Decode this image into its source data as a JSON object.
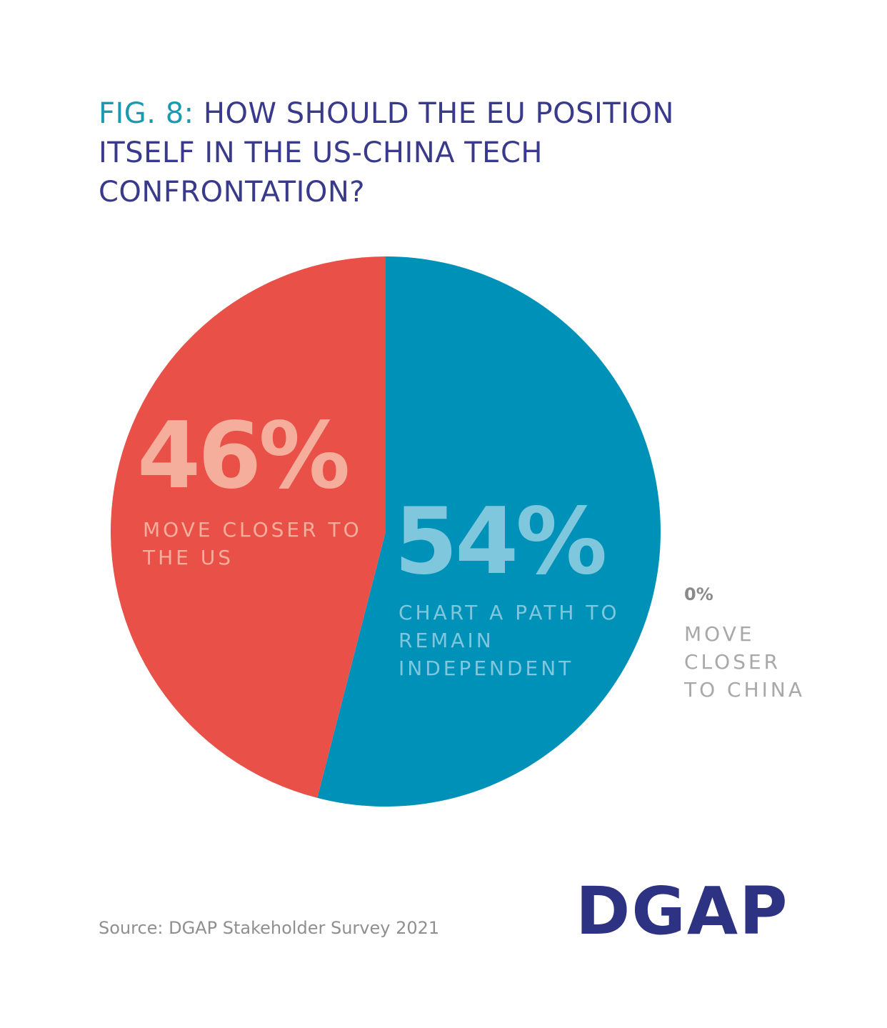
{
  "chart_data": {
    "type": "pie",
    "figure_label": "FIG. 8:",
    "title": "HOW SHOULD THE EU POSITION ITSELF IN THE US-CHINA TECH CONFRONTATION?",
    "categories": [
      "CHART A PATH TO REMAIN INDEPENDENT",
      "MOVE CLOSER TO THE US",
      "MOVE CLOSER TO CHINA"
    ],
    "values": [
      54,
      46,
      0
    ],
    "value_labels": [
      "54%",
      "46%",
      "0%"
    ],
    "colors": [
      "#0091b8",
      "#e85048",
      "#a8a8a8"
    ],
    "source": "Source: DGAP Stakeholder Survey 2021",
    "logo": "DGAP"
  }
}
